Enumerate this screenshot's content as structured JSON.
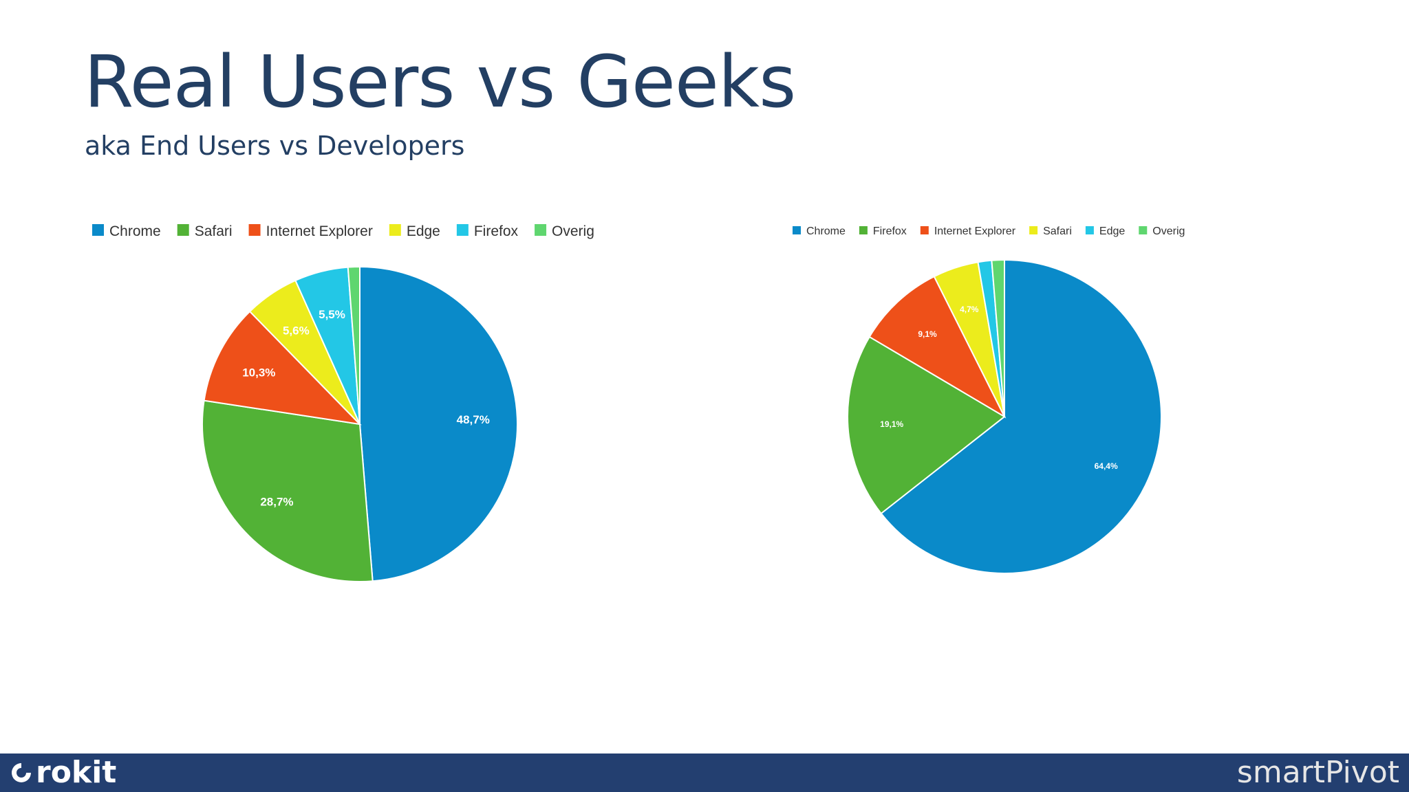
{
  "slide": {
    "title": "Real Users vs Geeks",
    "subtitle": "aka End Users vs Developers"
  },
  "footer": {
    "left_brand": "rokit",
    "right_brand": "smartPivot",
    "background": "#233f70"
  },
  "chart_data": [
    {
      "type": "pie",
      "legend_position": "top",
      "categories": [
        "Chrome",
        "Safari",
        "Internet Explorer",
        "Edge",
        "Firefox",
        "Overig"
      ],
      "values": [
        48.7,
        28.7,
        10.3,
        5.6,
        5.5,
        1.2
      ],
      "data_labels": [
        "48,7%",
        "28,7%",
        "10,3%",
        "5,6%",
        "5,5%",
        ""
      ],
      "colors": [
        "#0a8ac9",
        "#52b236",
        "#ee5019",
        "#ecec1c",
        "#23c7e6",
        "#5fd66f"
      ]
    },
    {
      "type": "pie",
      "legend_position": "top",
      "categories": [
        "Chrome",
        "Firefox",
        "Internet Explorer",
        "Safari",
        "Edge",
        "Overig"
      ],
      "values": [
        64.4,
        19.1,
        9.1,
        4.7,
        1.4,
        1.3
      ],
      "data_labels": [
        "64,4%",
        "19,1%",
        "9,1%",
        "4,7%",
        "",
        ""
      ],
      "colors": [
        "#0a8ac9",
        "#52b236",
        "#ee5019",
        "#ecec1c",
        "#23c7e6",
        "#5fd66f"
      ]
    }
  ]
}
